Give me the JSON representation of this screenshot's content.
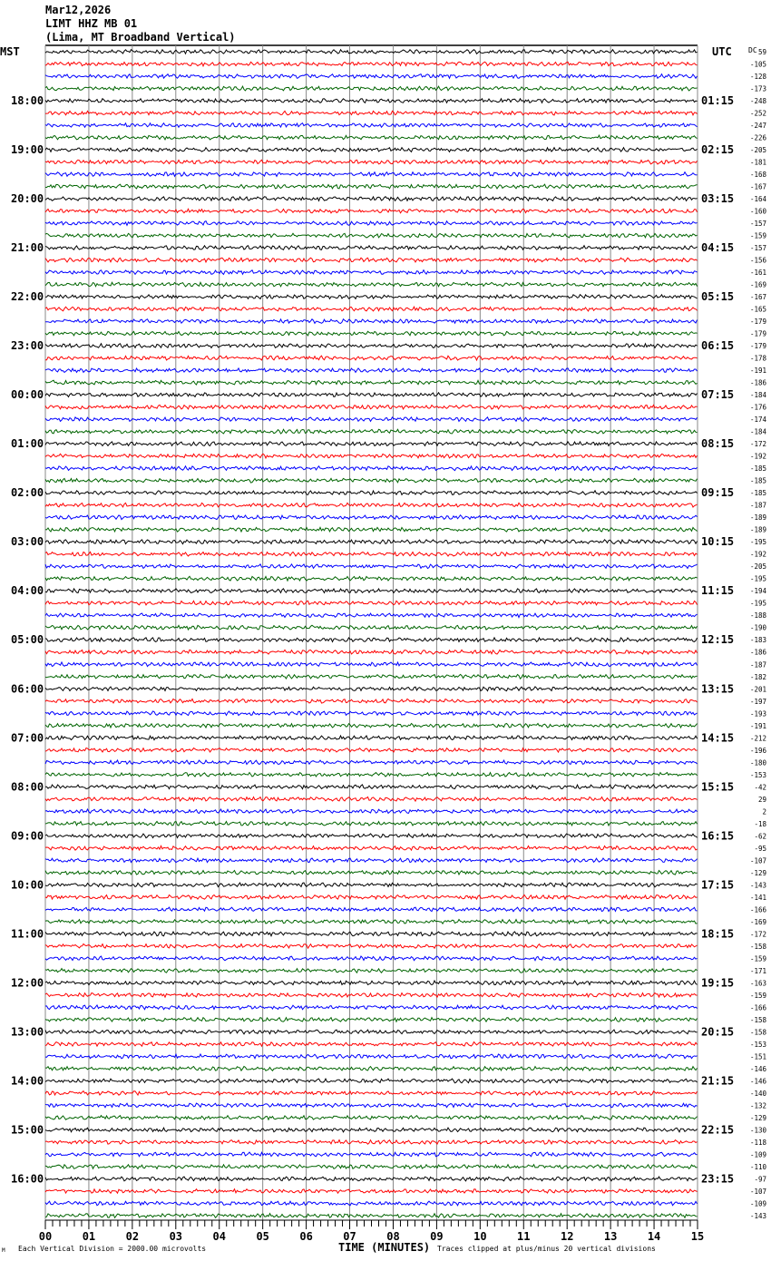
{
  "header": {
    "date": "Mar12,2026",
    "station": "LIMT HHZ MB 01",
    "location": "(Lima, MT Broadband Vertical)"
  },
  "left_axis_title": "MST",
  "right_axis_title": "UTC",
  "dc_label": "DC",
  "footer": {
    "scale_note": "Each Vertical Division = 2000.00 microvolts",
    "x_title": "TIME (MINUTES)",
    "clip_note": "Traces clipped at plus/minus 20 vertical divisions"
  },
  "chart_data": {
    "type": "line",
    "subtype": "helicorder",
    "trace_colors": [
      "#000000",
      "#ff0000",
      "#0000ff",
      "#006400"
    ],
    "xlabel": "TIME (MINUTES)",
    "xlim": [
      0,
      15
    ],
    "x_tick_labels": [
      "00",
      "01",
      "02",
      "03",
      "04",
      "05",
      "06",
      "07",
      "08",
      "09",
      "10",
      "11",
      "12",
      "13",
      "14",
      "15"
    ],
    "grid": true,
    "left_time_labels": [
      "18:00",
      "19:00",
      "20:00",
      "21:00",
      "22:00",
      "23:00",
      "00:00",
      "01:00",
      "02:00",
      "03:00",
      "04:00",
      "05:00",
      "06:00",
      "07:00",
      "08:00",
      "09:00",
      "10:00",
      "11:00",
      "12:00",
      "13:00",
      "14:00",
      "15:00",
      "16:00"
    ],
    "right_time_labels": [
      "01:15",
      "02:15",
      "03:15",
      "04:15",
      "05:15",
      "06:15",
      "07:15",
      "08:15",
      "09:15",
      "10:15",
      "11:15",
      "12:15",
      "13:15",
      "14:15",
      "15:15",
      "16:15",
      "17:15",
      "18:15",
      "19:15",
      "20:15",
      "21:15",
      "22:15",
      "23:15"
    ],
    "dc_offsets": [
      59,
      -105,
      -128,
      -173,
      -248,
      -252,
      -247,
      -226,
      -205,
      -181,
      -168,
      -167,
      -164,
      -160,
      -157,
      -159,
      -157,
      -156,
      -161,
      -169,
      -167,
      -165,
      -179,
      -179,
      -179,
      -178,
      -191,
      -186,
      -184,
      -176,
      -174,
      -184,
      -172,
      -192,
      -185,
      -185,
      -185,
      -187,
      -189,
      -189,
      -195,
      -192,
      -205,
      -195,
      -194,
      -195,
      -188,
      -190,
      -183,
      -186,
      -187,
      -182,
      -201,
      -197,
      -193,
      -191,
      -212,
      -196,
      -180,
      -153,
      -42,
      29,
      2,
      -18,
      -62,
      -95,
      -107,
      -129,
      -143,
      -141,
      -166,
      -169,
      -172,
      -158,
      -159,
      -171,
      -163,
      -159,
      -166,
      -158,
      -158,
      -153,
      -151,
      -146,
      -146,
      -140,
      -132,
      -129,
      -130,
      -118,
      -109,
      -110,
      -97,
      -107,
      -109,
      -143
    ]
  }
}
